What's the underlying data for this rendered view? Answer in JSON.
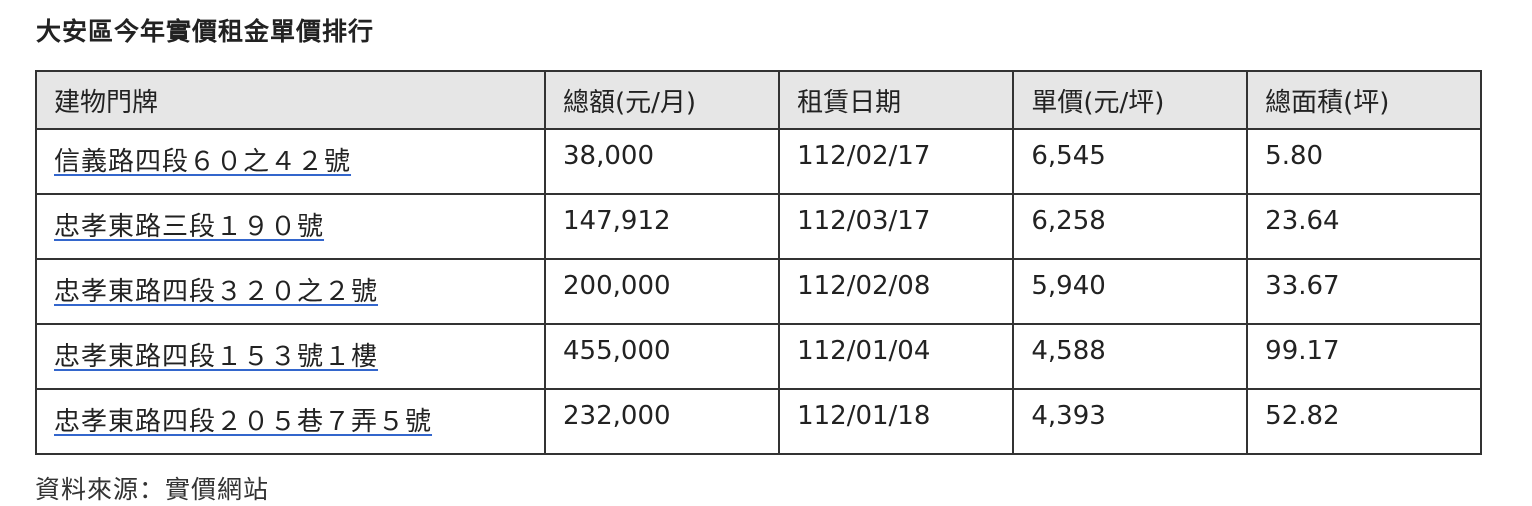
{
  "title": "大安區今年實價租金單價排行",
  "table": {
    "headers": [
      "建物門牌",
      "總額(元/月)",
      "租賃日期",
      "單價(元/坪)",
      "總面積(坪)"
    ],
    "rows": [
      [
        "信義路四段６０之４２號",
        "38,000",
        "112/02/17",
        "6,545",
        "5.80"
      ],
      [
        "忠孝東路三段１９０號",
        "147,912",
        "112/03/17",
        "6,258",
        "23.64"
      ],
      [
        "忠孝東路四段３２０之２號",
        "200,000",
        "112/02/08",
        "5,940",
        "33.67"
      ],
      [
        "忠孝東路四段１５３號１樓",
        "455,000",
        "112/01/04",
        "4,588",
        "99.17"
      ],
      [
        "忠孝東路四段２０５巷７弄５號",
        "232,000",
        "112/01/18",
        "4,393",
        "52.82"
      ]
    ]
  },
  "source": "資料來源：實價網站"
}
